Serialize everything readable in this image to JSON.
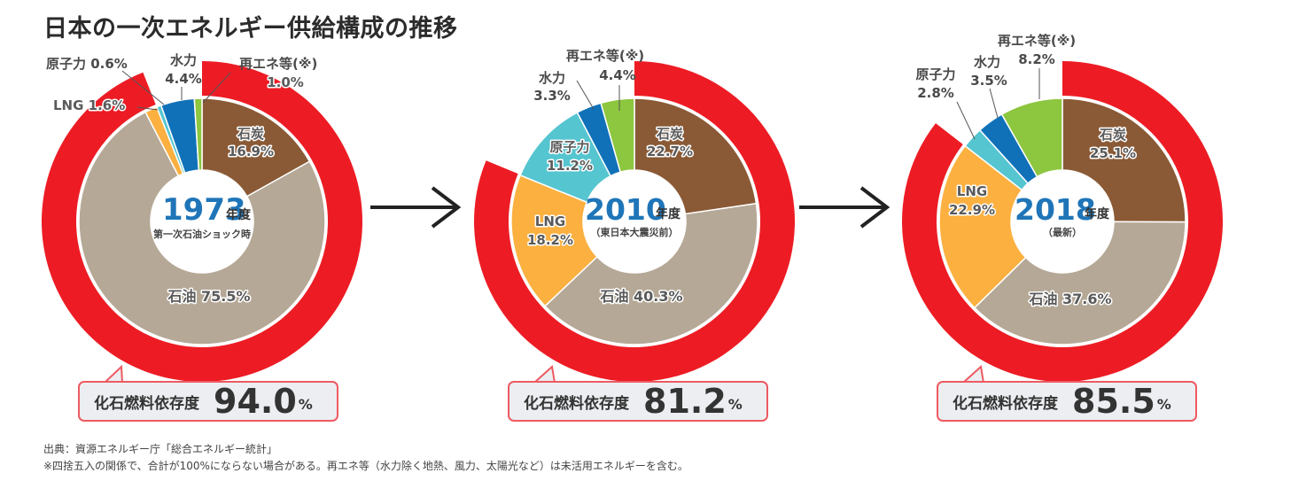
{
  "title": "日本の一次エネルギー供給構成の推移",
  "colors": {
    "fossil_ring": "#ed1c24",
    "coal": "#8a5a36",
    "oil": "#b5a896",
    "lng": "#fbb040",
    "nuclear": "#55c5d0",
    "hydro": "#1071b9",
    "renewable": "#8dc63f",
    "year_text": "#1f75b8",
    "callout_border": "#ee5a62",
    "callout_bg": "#eceef1"
  },
  "charts": [
    {
      "year": "1973",
      "year_suffix": "年度",
      "subtitle": "第一次石油ショック時",
      "fossil_label": "化石燃料依存度",
      "fossil_value": "94.0",
      "fossil_unit": "%",
      "labels": {
        "coal": "石炭",
        "coal_pct": "16.9%",
        "oil": "石油 75.5%",
        "lng": "LNG 1.6%",
        "nuclear": "原子力 0.6%",
        "hydro": "水力",
        "hydro_pct": "4.4%",
        "renewable": "再エネ等(※)",
        "renewable_pct": "1.0%"
      }
    },
    {
      "year": "2010",
      "year_suffix": "年度",
      "subtitle": "（東日本大震災前）",
      "fossil_label": "化石燃料依存度",
      "fossil_value": "81.2",
      "fossil_unit": "%",
      "labels": {
        "coal": "石炭",
        "coal_pct": "22.7%",
        "oil": "石油 40.3%",
        "lng": "LNG",
        "lng_pct": "18.2%",
        "nuclear": "原子力",
        "nuclear_pct": "11.2%",
        "hydro": "水力",
        "hydro_pct": "3.3%",
        "renewable": "再エネ等(※)",
        "renewable_pct": "4.4%"
      }
    },
    {
      "year": "2018",
      "year_suffix": "年度",
      "subtitle": "（最新）",
      "fossil_label": "化石燃料依存度",
      "fossil_value": "85.5",
      "fossil_unit": "%",
      "labels": {
        "coal": "石炭",
        "coal_pct": "25.1%",
        "oil": "石油 37.6%",
        "lng": "LNG",
        "lng_pct": "22.9%",
        "nuclear": "原子力",
        "nuclear_pct": "2.8%",
        "hydro": "水力",
        "hydro_pct": "3.5%",
        "renewable": "再エネ等(※)",
        "renewable_pct": "8.2%"
      }
    }
  ],
  "notes": {
    "source": "出典：資源エネルギー庁「総合エネルギー統計」",
    "footnote": "※四捨五入の関係で、合計が100%にならない場合がある。再エネ等（水力除く地熱、風力、太陽光など）は未活用エネルギーを含む。"
  },
  "chart_data": {
    "type": "pie",
    "title": "日本の一次エネルギー供給構成の推移",
    "unit": "%",
    "categories": [
      "石炭",
      "石油",
      "LNG",
      "原子力",
      "水力",
      "再エネ等(※)"
    ],
    "series": [
      {
        "name": "1973年度 第一次石油ショック時",
        "values": [
          16.9,
          75.5,
          1.6,
          0.6,
          4.4,
          1.0
        ],
        "fossil_dependency": 94.0
      },
      {
        "name": "2010年度（東日本大震災前）",
        "values": [
          22.7,
          40.3,
          18.2,
          11.2,
          3.3,
          4.4
        ],
        "fossil_dependency": 81.2
      },
      {
        "name": "2018年度（最新）",
        "values": [
          25.1,
          37.6,
          22.9,
          2.8,
          3.5,
          8.2
        ],
        "fossil_dependency": 85.5
      }
    ],
    "annotations": [
      "化石燃料依存度 94.0%",
      "化石燃料依存度 81.2%",
      "化石燃料依存度 85.5%"
    ],
    "source": "資源エネルギー庁「総合エネルギー統計」"
  }
}
